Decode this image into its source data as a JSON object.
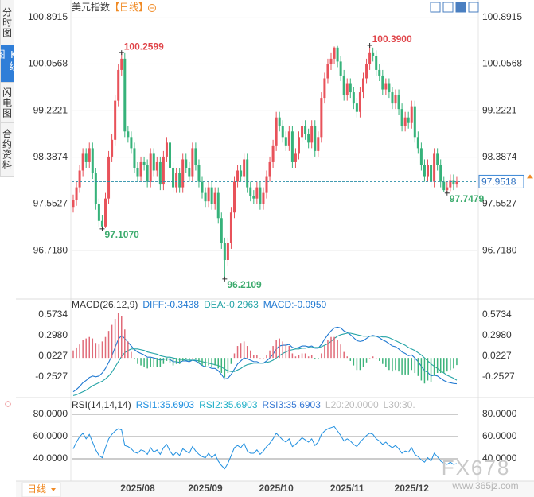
{
  "header": {
    "title": "美元指数",
    "period": "【日线】",
    "bottom_tab": "日线"
  },
  "sidebar_tabs": [
    "分时图",
    "K线图",
    "闪电图",
    "合约资料"
  ],
  "watermark": {
    "brand": "FX678",
    "url": "www.365jz.com"
  },
  "chart_data": [
    {
      "type": "candlestick",
      "up_color": "#e8525a",
      "down_color": "#36b27a",
      "grid": true,
      "ylim": [
        95.91,
        101.03
      ],
      "yticks": [
        100.8915,
        100.0568,
        99.2221,
        98.3874,
        97.5527,
        {
          "value": 96.718,
          "label": "96.7180"
        }
      ],
      "current_price": 97.9518,
      "current_color": "#2a8fa8",
      "extreme_labels": [
        100.2599,
        {
          "value": 97.107,
          "label": "97.1070"
        },
        96.2109,
        {
          "value": 100.39,
          "label": "100.3900"
        },
        97.7479
      ],
      "categories": [
        null,
        null,
        null,
        null,
        null,
        null,
        null,
        null,
        null,
        null,
        null,
        null,
        null,
        null,
        null,
        null,
        null,
        null,
        null,
        null,
        "2025/08",
        null,
        null,
        null,
        null,
        null,
        null,
        null,
        null,
        null,
        null,
        null,
        null,
        null,
        null,
        null,
        null,
        null,
        null,
        null,
        null,
        "2025/09",
        null,
        null,
        null,
        null,
        null,
        null,
        null,
        null,
        null,
        null,
        null,
        null,
        null,
        null,
        null,
        null,
        null,
        null,
        null,
        null,
        null,
        "2025/10",
        null,
        null,
        null,
        null,
        null,
        null,
        null,
        null,
        null,
        null,
        null,
        null,
        null,
        null,
        null,
        null,
        null,
        null,
        null,
        null,
        null,
        "2025/11",
        null,
        null,
        null,
        null,
        null,
        null,
        null,
        null,
        null,
        null,
        null,
        null,
        null,
        null,
        null,
        null,
        null,
        null,
        null,
        "2025/12",
        null,
        null,
        null,
        null,
        null,
        null,
        null,
        null,
        null,
        null,
        null,
        null,
        null,
        null
      ],
      "open": [
        97.5,
        97.62,
        97.85,
        98.15,
        98.45,
        98.3,
        98.55,
        98.1,
        97.55,
        97.25,
        97.15,
        97.65,
        98.4,
        98.7,
        99.4,
        99.95,
        100.15,
        98.85,
        98.75,
        98.55,
        98.2,
        98.05,
        98.3,
        98.25,
        97.95,
        98.45,
        98.15,
        98.3,
        97.9,
        98.4,
        98.65,
        98.2,
        97.85,
        98.1,
        97.85,
        98.35,
        98.2,
        98.05,
        98.55,
        98.25,
        97.95,
        97.75,
        97.6,
        97.85,
        97.55,
        97.75,
        97.3,
        96.85,
        96.55,
        96.85,
        97.4,
        97.95,
        98.15,
        98.05,
        98.35,
        97.85,
        97.7,
        97.65,
        97.85,
        97.55,
        97.75,
        98.05,
        98.3,
        98.6,
        99.1,
        98.95,
        98.75,
        98.6,
        98.85,
        98.3,
        98.45,
        98.75,
        98.95,
        98.8,
        98.65,
        98.95,
        98.5,
        98.75,
        99.45,
        99.8,
        100.05,
        100.15,
        100.35,
        100.1,
        99.85,
        99.5,
        99.7,
        99.55,
        99.35,
        99.2,
        99.55,
        99.8,
        100.05,
        100.25,
        100.2,
        99.95,
        99.85,
        99.6,
        99.7,
        99.55,
        99.35,
        99.5,
        99.25,
        98.95,
        99.1,
        99.0,
        99.3,
        98.75,
        98.55,
        98.25,
        98.05,
        98.25,
        97.95,
        98.45,
        98.25,
        97.95,
        97.8,
        97.85,
        97.98,
        97.9
      ],
      "high": [
        97.72,
        97.95,
        98.25,
        98.55,
        98.55,
        98.65,
        98.65,
        98.2,
        97.65,
        97.35,
        97.75,
        98.5,
        98.8,
        99.5,
        100.05,
        100.2599,
        100.25,
        98.95,
        98.85,
        98.65,
        98.3,
        98.4,
        98.4,
        98.35,
        98.55,
        98.55,
        98.4,
        98.4,
        98.5,
        98.75,
        98.75,
        98.3,
        98.2,
        98.2,
        98.45,
        98.45,
        98.3,
        98.65,
        98.65,
        98.35,
        98.05,
        97.85,
        97.95,
        97.95,
        97.85,
        97.85,
        97.4,
        96.95,
        96.95,
        97.5,
        98.05,
        98.25,
        98.25,
        98.45,
        98.45,
        97.95,
        97.8,
        97.95,
        97.95,
        97.85,
        98.15,
        98.4,
        98.7,
        99.2,
        99.2,
        99.05,
        98.85,
        98.95,
        98.95,
        98.55,
        98.85,
        99.05,
        99.05,
        98.9,
        99.05,
        99.05,
        98.85,
        99.55,
        99.9,
        100.15,
        100.25,
        100.37,
        100.38,
        100.2,
        99.95,
        99.8,
        99.8,
        99.65,
        99.45,
        99.65,
        99.9,
        100.15,
        100.39,
        100.35,
        100.3,
        100.05,
        99.95,
        99.8,
        99.8,
        99.65,
        99.6,
        99.6,
        99.35,
        99.2,
        99.2,
        99.4,
        99.4,
        98.85,
        98.65,
        98.35,
        98.35,
        98.35,
        98.55,
        98.55,
        98.35,
        98.05,
        97.95,
        98.08,
        98.08,
        98.05
      ],
      "low": [
        97.4,
        97.52,
        97.75,
        98.05,
        98.2,
        98.2,
        98.0,
        97.45,
        97.15,
        97.107,
        97.12,
        97.55,
        98.3,
        98.6,
        99.3,
        99.85,
        98.75,
        98.65,
        98.45,
        98.1,
        97.95,
        97.95,
        98.15,
        97.85,
        97.85,
        98.05,
        98.05,
        97.8,
        97.8,
        98.3,
        98.1,
        97.75,
        97.75,
        97.75,
        97.75,
        98.1,
        97.95,
        97.95,
        98.15,
        97.85,
        97.65,
        97.5,
        97.5,
        97.45,
        97.45,
        97.2,
        96.75,
        96.2109,
        96.45,
        96.75,
        97.3,
        97.85,
        97.95,
        97.95,
        97.75,
        97.6,
        97.55,
        97.55,
        97.45,
        97.45,
        97.65,
        97.95,
        98.2,
        98.5,
        98.85,
        98.65,
        98.5,
        98.5,
        98.2,
        98.2,
        98.35,
        98.65,
        98.7,
        98.55,
        98.55,
        98.4,
        98.4,
        98.65,
        99.35,
        99.7,
        99.95,
        100.05,
        100.0,
        99.75,
        99.4,
        99.4,
        99.45,
        99.25,
        99.1,
        99.1,
        99.45,
        99.7,
        99.95,
        100.1,
        99.85,
        99.75,
        99.5,
        99.5,
        99.45,
        99.25,
        99.25,
        99.15,
        98.85,
        98.85,
        98.9,
        98.9,
        98.65,
        98.45,
        98.15,
        97.95,
        97.95,
        97.85,
        97.85,
        98.15,
        97.85,
        97.76,
        97.7479,
        97.78,
        97.8,
        97.85
      ],
      "close": [
        97.62,
        97.85,
        98.15,
        98.45,
        98.3,
        98.55,
        98.1,
        97.55,
        97.25,
        97.15,
        97.65,
        98.4,
        98.7,
        99.4,
        99.95,
        100.15,
        98.85,
        98.75,
        98.55,
        98.2,
        98.05,
        98.3,
        98.25,
        97.95,
        98.45,
        98.15,
        98.3,
        97.9,
        98.4,
        98.65,
        98.2,
        97.85,
        98.1,
        97.85,
        98.35,
        98.2,
        98.05,
        98.55,
        98.25,
        97.95,
        97.75,
        97.6,
        97.85,
        97.55,
        97.75,
        97.3,
        96.85,
        96.55,
        96.85,
        97.4,
        97.95,
        98.15,
        98.05,
        98.35,
        97.85,
        97.7,
        97.65,
        97.85,
        97.55,
        97.75,
        98.05,
        98.3,
        98.6,
        99.1,
        98.95,
        98.75,
        98.6,
        98.85,
        98.3,
        98.45,
        98.75,
        98.95,
        98.8,
        98.65,
        98.95,
        98.5,
        98.75,
        99.45,
        99.8,
        100.05,
        100.15,
        100.35,
        100.1,
        99.85,
        99.5,
        99.7,
        99.55,
        99.35,
        99.2,
        99.55,
        99.8,
        100.05,
        100.25,
        100.2,
        99.95,
        99.85,
        99.6,
        99.7,
        99.55,
        99.35,
        99.5,
        99.25,
        98.95,
        99.1,
        99.0,
        99.3,
        98.75,
        98.55,
        98.25,
        98.05,
        98.25,
        97.95,
        98.45,
        98.25,
        97.95,
        97.8,
        97.85,
        97.98,
        97.9,
        97.9518
      ]
    },
    {
      "type": "macd",
      "title": "MACD(26,12,9)",
      "ylim": [
        -0.528,
        0.637
      ],
      "yticks": [
        0.5734,
        {
          "value": 0.298,
          "label": "0.2980"
        },
        0.0227,
        -0.2527
      ],
      "series": [
        {
          "name": "DIFF:-0.3438",
          "color": "#1f78d1",
          "values": [
            -0.45,
            -0.42,
            -0.38,
            -0.33,
            -0.3,
            -0.26,
            -0.24,
            -0.25,
            -0.24,
            -0.2,
            -0.14,
            -0.06,
            0.03,
            0.14,
            0.25,
            0.3,
            0.26,
            0.21,
            0.16,
            0.11,
            0.08,
            0.06,
            0.04,
            0.01,
            0.01,
            0.0,
            -0.01,
            -0.03,
            -0.02,
            -0.01,
            -0.02,
            -0.05,
            -0.05,
            -0.06,
            -0.04,
            -0.04,
            -0.05,
            -0.03,
            -0.04,
            -0.07,
            -0.1,
            -0.12,
            -0.12,
            -0.14,
            -0.14,
            -0.17,
            -0.22,
            -0.28,
            -0.27,
            -0.22,
            -0.15,
            -0.08,
            -0.04,
            0.0,
            -0.01,
            -0.03,
            -0.05,
            -0.05,
            -0.07,
            -0.07,
            -0.04,
            0.0,
            0.05,
            0.12,
            0.16,
            0.17,
            0.17,
            0.18,
            0.14,
            0.13,
            0.14,
            0.16,
            0.16,
            0.15,
            0.16,
            0.13,
            0.13,
            0.18,
            0.25,
            0.31,
            0.36,
            0.4,
            0.41,
            0.4,
            0.36,
            0.34,
            0.31,
            0.27,
            0.23,
            0.22,
            0.23,
            0.26,
            0.29,
            0.3,
            0.29,
            0.27,
            0.24,
            0.22,
            0.19,
            0.16,
            0.15,
            0.12,
            0.08,
            0.06,
            0.03,
            0.04,
            0.0,
            -0.05,
            -0.11,
            -0.17,
            -0.19,
            -0.24,
            -0.23,
            -0.24,
            -0.27,
            -0.3,
            -0.32,
            -0.33,
            -0.34,
            -0.3438
          ]
        },
        {
          "name": "DEA:-0.2963",
          "color": "#23a3a6",
          "values": [
            -0.5,
            -0.49,
            -0.47,
            -0.45,
            -0.43,
            -0.4,
            -0.37,
            -0.35,
            -0.33,
            -0.31,
            -0.28,
            -0.24,
            -0.19,
            -0.12,
            -0.05,
            0.02,
            0.07,
            0.1,
            0.12,
            0.12,
            0.12,
            0.11,
            0.1,
            0.08,
            0.07,
            0.06,
            0.05,
            0.03,
            0.02,
            0.01,
            0.01,
            0.0,
            -0.01,
            -0.02,
            -0.02,
            -0.03,
            -0.03,
            -0.03,
            -0.03,
            -0.04,
            -0.05,
            -0.06,
            -0.07,
            -0.08,
            -0.09,
            -0.1,
            -0.12,
            -0.15,
            -0.17,
            -0.18,
            -0.18,
            -0.16,
            -0.14,
            -0.11,
            -0.09,
            -0.08,
            -0.07,
            -0.07,
            -0.07,
            -0.07,
            -0.06,
            -0.05,
            -0.03,
            0.0,
            0.03,
            0.06,
            0.08,
            0.1,
            0.11,
            0.12,
            0.12,
            0.13,
            0.13,
            0.14,
            0.14,
            0.14,
            0.14,
            0.15,
            0.17,
            0.19,
            0.22,
            0.26,
            0.29,
            0.31,
            0.32,
            0.33,
            0.33,
            0.32,
            0.31,
            0.3,
            0.29,
            0.29,
            0.29,
            0.29,
            0.29,
            0.29,
            0.28,
            0.28,
            0.27,
            0.25,
            0.23,
            0.21,
            0.19,
            0.17,
            0.14,
            0.12,
            0.1,
            0.07,
            0.04,
            0.0,
            -0.04,
            -0.08,
            -0.11,
            -0.14,
            -0.17,
            -0.2,
            -0.23,
            -0.25,
            -0.27,
            -0.2963
          ]
        },
        {
          "name": "MACD:-0.0950",
          "color": "#1f78d1",
          "up_color": "#e06a78",
          "down_color": "#3cb37a",
          "values": [
            0.1,
            0.14,
            0.18,
            0.24,
            0.26,
            0.28,
            0.26,
            0.2,
            0.18,
            0.22,
            0.28,
            0.36,
            0.44,
            0.52,
            0.6,
            0.56,
            0.38,
            0.22,
            0.08,
            -0.02,
            -0.08,
            -0.1,
            -0.12,
            -0.14,
            -0.12,
            -0.12,
            -0.12,
            -0.12,
            -0.08,
            -0.04,
            -0.06,
            -0.1,
            -0.08,
            -0.08,
            -0.04,
            -0.02,
            -0.04,
            0.0,
            -0.02,
            -0.06,
            -0.1,
            -0.12,
            -0.1,
            -0.12,
            -0.1,
            -0.14,
            -0.2,
            -0.26,
            -0.2,
            -0.08,
            0.06,
            0.16,
            0.2,
            0.22,
            0.16,
            0.1,
            0.04,
            0.04,
            0.0,
            0.0,
            0.04,
            0.1,
            0.16,
            0.24,
            0.26,
            0.22,
            0.18,
            0.16,
            0.06,
            0.02,
            0.04,
            0.06,
            0.06,
            0.02,
            0.04,
            -0.02,
            -0.02,
            0.06,
            0.16,
            0.24,
            0.28,
            0.28,
            0.24,
            0.18,
            0.08,
            0.02,
            -0.04,
            -0.1,
            -0.16,
            -0.16,
            -0.12,
            -0.06,
            0.0,
            0.02,
            0.0,
            -0.04,
            -0.08,
            -0.12,
            -0.16,
            -0.18,
            -0.16,
            -0.18,
            -0.22,
            -0.22,
            -0.22,
            -0.16,
            -0.2,
            -0.24,
            -0.3,
            -0.34,
            -0.3,
            -0.32,
            -0.24,
            -0.2,
            -0.2,
            -0.2,
            -0.18,
            -0.16,
            -0.14,
            -0.095
          ]
        }
      ]
    },
    {
      "type": "rsi",
      "title": "RSI(14,14,14)",
      "ylim": [
        20,
        84.3
      ],
      "yticks": [
        {
          "value": 80,
          "label": "80.0000"
        },
        {
          "value": 60,
          "label": "60.0000"
        },
        {
          "value": 40,
          "label": "40.0000"
        }
      ],
      "grid": true,
      "series": [
        {
          "name": "RSI1:35.6903",
          "color": "#1f8fe0",
          "values": [
            49,
            55,
            60,
            63,
            58,
            62,
            55,
            48,
            43,
            41,
            50,
            58,
            62,
            65,
            67,
            66,
            52,
            51,
            49,
            46,
            45,
            48,
            47,
            44,
            50,
            46,
            48,
            44,
            50,
            53,
            47,
            43,
            46,
            43,
            49,
            47,
            45,
            51,
            47,
            44,
            42,
            41,
            45,
            41,
            44,
            38,
            34,
            31,
            36,
            43,
            50,
            52,
            50,
            54,
            47,
            45,
            45,
            48,
            44,
            47,
            51,
            54,
            58,
            63,
            60,
            57,
            55,
            58,
            51,
            53,
            56,
            59,
            57,
            55,
            58,
            52,
            55,
            62,
            65,
            67,
            68,
            69,
            65,
            61,
            56,
            58,
            56,
            53,
            51,
            55,
            58,
            61,
            63,
            62,
            58,
            56,
            53,
            55,
            52,
            50,
            52,
            49,
            45,
            47,
            46,
            50,
            44,
            42,
            39,
            37,
            41,
            38,
            45,
            42,
            38,
            36,
            35,
            37,
            35,
            35.6903
          ]
        },
        {
          "name": "RSI2:35.6903",
          "color": "#22b0c8"
        },
        {
          "name": "RSI3:35.6903",
          "color": "#3a7bd5"
        },
        {
          "name": "L20:20.0000",
          "color": "#bbbbbb"
        },
        {
          "name": "L30:30.",
          "color": "#bbbbbb"
        }
      ]
    }
  ]
}
